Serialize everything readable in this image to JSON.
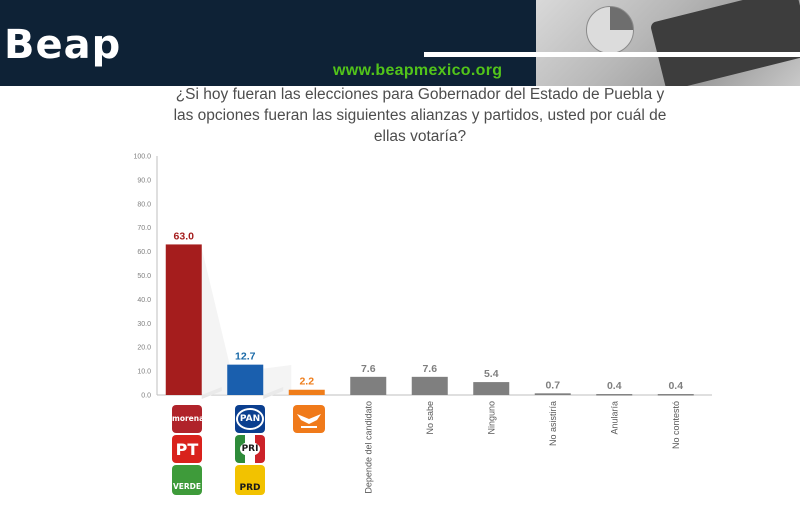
{
  "header": {
    "brand": "Beap",
    "url": "www.beapmexico.org"
  },
  "chart_data": {
    "type": "bar",
    "title": "¿Si hoy fueran las elecciones para Gobernador del Estado de Puebla y las opciones fueran las siguientes alianzas y partidos, usted por cuál de ellas votaría?",
    "categories": [
      "",
      "",
      "",
      "Depende del candidato",
      "No sabe",
      "Ninguno",
      "No asistiría",
      "Anularía",
      "No contestó"
    ],
    "values": [
      63.0,
      12.7,
      2.2,
      7.6,
      7.6,
      5.4,
      0.7,
      0.4,
      0.4
    ],
    "value_labels": [
      "63.0",
      "12.7",
      "2.2",
      "7.6",
      "7.6",
      "5.4",
      "0.7",
      "0.4",
      "0.4"
    ],
    "bar_colors": [
      "#a51d1d",
      "#1a5fae",
      "#ef7d1a",
      "#7f7f7f",
      "#7f7f7f",
      "#7f7f7f",
      "#7f7f7f",
      "#7f7f7f",
      "#7f7f7f"
    ],
    "label_colors": [
      "#a51d1d",
      "#1a6aa8",
      "#ef7d1a",
      "#7f7f7f",
      "#7f7f7f",
      "#7f7f7f",
      "#7f7f7f",
      "#7f7f7f",
      "#7f7f7f"
    ],
    "yticks": [
      "0.0",
      "10.0",
      "20.0",
      "30.0",
      "40.0",
      "50.0",
      "60.0",
      "70.0",
      "80.0",
      "90.0",
      "100.0"
    ],
    "ylim": [
      0,
      100
    ],
    "grid": false,
    "legend": "none"
  },
  "party_logos": {
    "morena": {
      "label": "morena",
      "color": "#b0232a"
    },
    "pt": {
      "label": "PT",
      "color": "#d9221c"
    },
    "verde": {
      "label": "VERDE",
      "color": "#3e9b3a"
    },
    "pan": {
      "label": "PAN",
      "color": "#0b3f8f"
    },
    "pri": {
      "label": "PRI",
      "color": "#e8e8e8"
    },
    "prd": {
      "label": "PRD",
      "color": "#f2c200"
    },
    "mc": {
      "label": "",
      "color": "#f07a1a"
    }
  }
}
